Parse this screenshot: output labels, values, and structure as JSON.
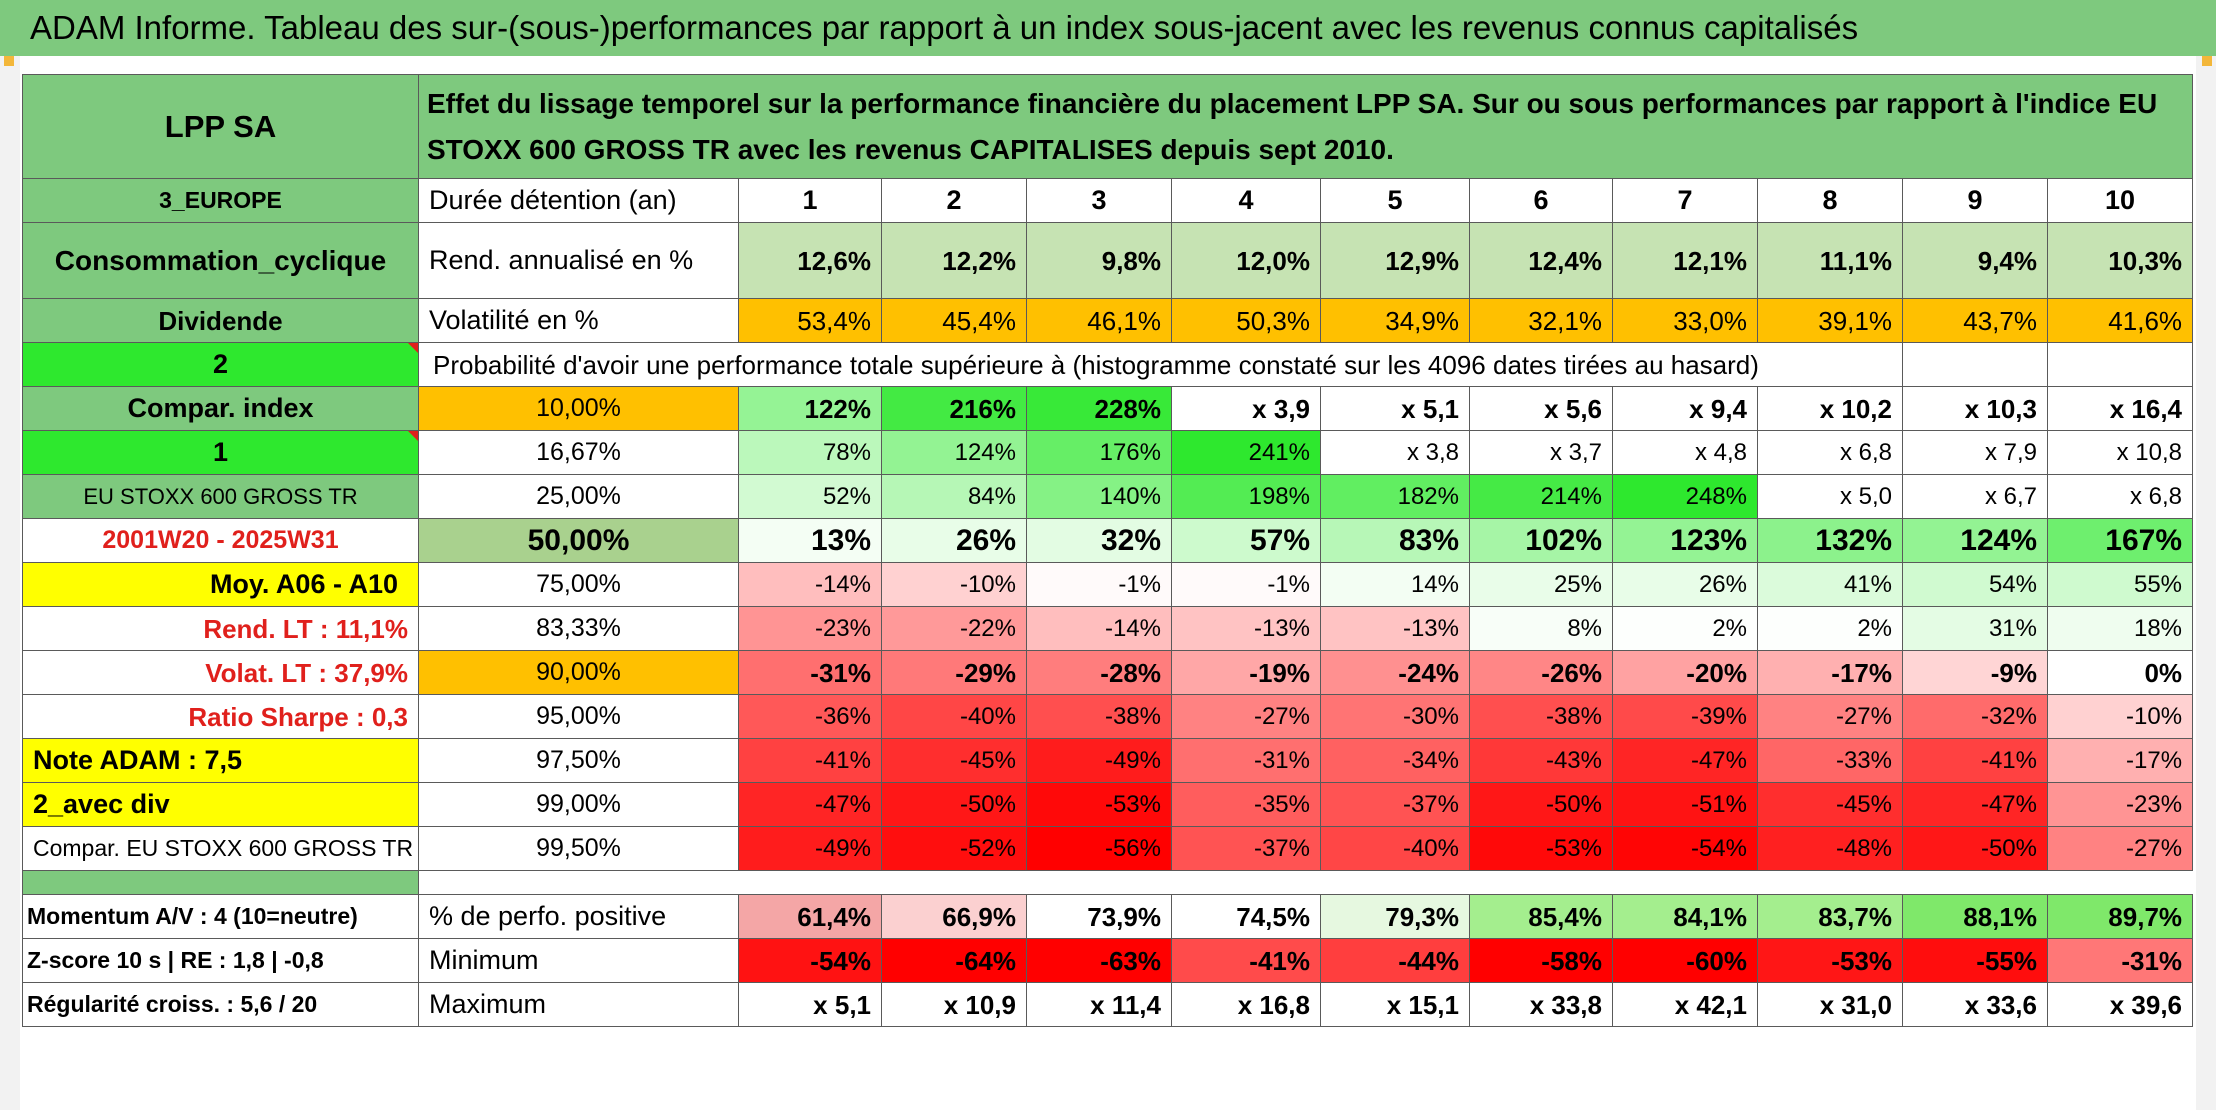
{
  "banner": {
    "title": "ADAM Informe. Tableau des sur-(sous-)performances par rapport à un index sous-jacent avec les revenus connus capitalisés"
  },
  "colors": {
    "green_dark": "#7ec97e",
    "green_bright": "#2ee82e",
    "orange": "#ffc000",
    "yellow": "#ffff00",
    "red": "#ff0000",
    "label_red": "#e0201c"
  },
  "left": {
    "fund": "LPP SA",
    "region": "3_EUROPE",
    "sector": "Consommation_cyclique",
    "dividend": "Dividende",
    "flag2": "2",
    "compar_index": "Compar. index",
    "flag1": "1",
    "index_name": "EU STOXX 600 GROSS TR",
    "period": "2001W20 - 2025W31",
    "moy": "Moy. A06 - A10",
    "rend_lt": "Rend. LT :   11,1%",
    "volat_lt": "Volat. LT :   37,9%",
    "sharpe": "Ratio Sharpe :    0,3",
    "note": "Note ADAM : 7,5",
    "avec_div": "2_avec div",
    "compar_full": "Compar. EU STOXX 600 GROSS TR",
    "momentum": "Momentum A/V : 4 (10=neutre)",
    "zscore": "Z-score 10 s | RE : 1,8 | -0,8",
    "regularite": "Régularité croiss. : 5,6 / 20"
  },
  "header_text": "Effet du lissage temporel sur la performance financière du placement LPP SA. Sur ou sous performances par rapport à l'indice EU STOXX 600 GROSS TR avec les revenus CAPITALISES depuis sept 2010.",
  "duration_label": "Durée détention (an)",
  "years": [
    "1",
    "2",
    "3",
    "4",
    "5",
    "6",
    "7",
    "8",
    "9",
    "10"
  ],
  "rend_label": "Rend. annualisé en %",
  "rend": [
    "12,6%",
    "12,2%",
    "9,8%",
    "12,0%",
    "12,9%",
    "12,4%",
    "12,1%",
    "11,1%",
    "9,4%",
    "10,3%"
  ],
  "vol_label": "Volatilité en %",
  "vol": [
    "53,4%",
    "45,4%",
    "46,1%",
    "50,3%",
    "34,9%",
    "32,1%",
    "33,0%",
    "39,1%",
    "43,7%",
    "41,6%"
  ],
  "prob_label": "Probabilité d'avoir une performance totale supérieure à (histogramme constaté sur les 4096 dates tirées au hasard)",
  "prob_rows": [
    {
      "pct": "10,00%",
      "values": [
        "122%",
        "216%",
        "228%",
        "x 3,9",
        "x 5,1",
        "x 5,6",
        "x 9,4",
        "x 10,2",
        "x 10,3",
        "x 16,4"
      ]
    },
    {
      "pct": "16,67%",
      "values": [
        "78%",
        "124%",
        "176%",
        "241%",
        "x 3,8",
        "x 3,7",
        "x 4,8",
        "x 6,8",
        "x 7,9",
        "x 10,8"
      ]
    },
    {
      "pct": "25,00%",
      "values": [
        "52%",
        "84%",
        "140%",
        "198%",
        "182%",
        "214%",
        "248%",
        "x 5,0",
        "x 6,7",
        "x 6,8"
      ]
    },
    {
      "pct": "50,00%",
      "values": [
        "13%",
        "26%",
        "32%",
        "57%",
        "83%",
        "102%",
        "123%",
        "132%",
        "124%",
        "167%"
      ]
    },
    {
      "pct": "75,00%",
      "values": [
        "-14%",
        "-10%",
        "-1%",
        "-1%",
        "14%",
        "25%",
        "26%",
        "41%",
        "54%",
        "55%"
      ]
    },
    {
      "pct": "83,33%",
      "values": [
        "-23%",
        "-22%",
        "-14%",
        "-13%",
        "-13%",
        "8%",
        "2%",
        "2%",
        "31%",
        "18%"
      ]
    },
    {
      "pct": "90,00%",
      "values": [
        "-31%",
        "-29%",
        "-28%",
        "-19%",
        "-24%",
        "-26%",
        "-20%",
        "-17%",
        "-9%",
        "0%"
      ]
    },
    {
      "pct": "95,00%",
      "values": [
        "-36%",
        "-40%",
        "-38%",
        "-27%",
        "-30%",
        "-38%",
        "-39%",
        "-27%",
        "-32%",
        "-10%"
      ]
    },
    {
      "pct": "97,50%",
      "values": [
        "-41%",
        "-45%",
        "-49%",
        "-31%",
        "-34%",
        "-43%",
        "-47%",
        "-33%",
        "-41%",
        "-17%"
      ]
    },
    {
      "pct": "99,00%",
      "values": [
        "-47%",
        "-50%",
        "-53%",
        "-35%",
        "-37%",
        "-50%",
        "-51%",
        "-45%",
        "-47%",
        "-23%"
      ]
    },
    {
      "pct": "99,50%",
      "values": [
        "-49%",
        "-52%",
        "-56%",
        "-37%",
        "-40%",
        "-53%",
        "-54%",
        "-48%",
        "-50%",
        "-27%"
      ]
    }
  ],
  "pos_label": "% de perfo. positive",
  "pos": [
    "61,4%",
    "66,9%",
    "73,9%",
    "74,5%",
    "79,3%",
    "85,4%",
    "84,1%",
    "83,7%",
    "88,1%",
    "89,7%"
  ],
  "min_label": "Minimum",
  "min": [
    "-54%",
    "-64%",
    "-63%",
    "-41%",
    "-44%",
    "-58%",
    "-60%",
    "-53%",
    "-55%",
    "-31%"
  ],
  "max_label": "Maximum",
  "max": [
    "x 5,1",
    "x 10,9",
    "x 11,4",
    "x 16,8",
    "x 15,1",
    "x 33,8",
    "x 42,1",
    "x 31,0",
    "x 33,6",
    "x 39,6"
  ]
}
